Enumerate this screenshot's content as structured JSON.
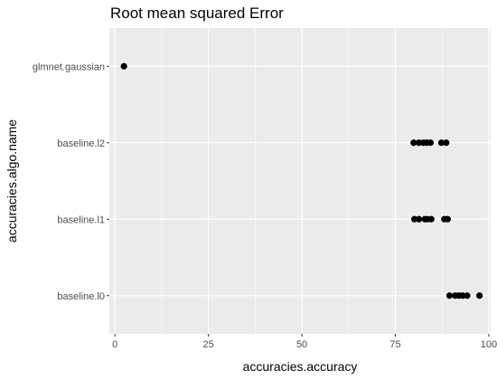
{
  "chart_data": {
    "type": "scatter",
    "title": "Root mean squared  Error",
    "xlabel": "accuracies.accuracy",
    "ylabel": "accuracies.algo.name",
    "xlim": [
      -1.5,
      100.5
    ],
    "xticks": [
      0,
      25,
      50,
      75,
      100
    ],
    "xtick_labels": [
      "0",
      "25",
      "50",
      "75",
      "100"
    ],
    "categories": [
      "glmnet.gaussian",
      "baseline.l2",
      "baseline.l1",
      "baseline.l0"
    ],
    "grid": true,
    "legend": "none",
    "colors": {
      "panel": "#ebebeb",
      "grid": "#ffffff",
      "point": "#000000",
      "tick_text": "#4d4d4d"
    },
    "points": [
      {
        "category": "glmnet.gaussian",
        "x": 2.4
      },
      {
        "category": "baseline.l2",
        "x": 79.9
      },
      {
        "category": "baseline.l2",
        "x": 81.3
      },
      {
        "category": "baseline.l2",
        "x": 82.5
      },
      {
        "category": "baseline.l2",
        "x": 83.4
      },
      {
        "category": "baseline.l2",
        "x": 84.4
      },
      {
        "category": "baseline.l2",
        "x": 87.3
      },
      {
        "category": "baseline.l2",
        "x": 88.6
      },
      {
        "category": "baseline.l1",
        "x": 80.1
      },
      {
        "category": "baseline.l1",
        "x": 81.3
      },
      {
        "category": "baseline.l1",
        "x": 82.9
      },
      {
        "category": "baseline.l1",
        "x": 83.6
      },
      {
        "category": "baseline.l1",
        "x": 84.6
      },
      {
        "category": "baseline.l1",
        "x": 88.1
      },
      {
        "category": "baseline.l1",
        "x": 89.0
      },
      {
        "category": "baseline.l0",
        "x": 89.5
      },
      {
        "category": "baseline.l0",
        "x": 91.0
      },
      {
        "category": "baseline.l0",
        "x": 92.0
      },
      {
        "category": "baseline.l0",
        "x": 93.0
      },
      {
        "category": "baseline.l0",
        "x": 94.2
      },
      {
        "category": "baseline.l0",
        "x": 97.5
      }
    ]
  }
}
